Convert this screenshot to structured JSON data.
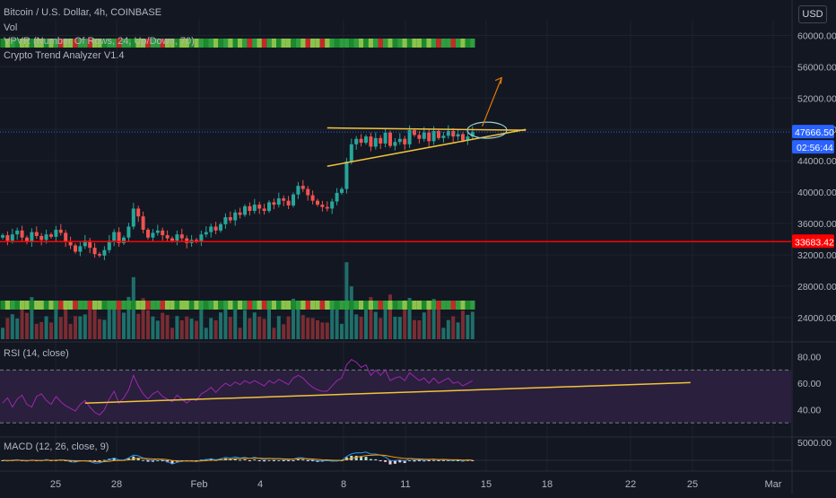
{
  "header": {
    "title": "Bitcoin / U.S. Dollar, 4h, COINBASE",
    "currency": "USD"
  },
  "indicators": {
    "vol": "Vol",
    "vpvr": "VPVR (Number Of Rows, 24, Up/Down, 70)",
    "trend": "Crypto Trend Analyzer V1.4",
    "rsi": "RSI (14, close)",
    "macd": "MACD (12, 26, close, 9)"
  },
  "colors": {
    "background": "#131722",
    "up": "#26a69a",
    "down": "#ef5350",
    "volume_up": "#1f6f6a",
    "volume_down": "#7a2c33",
    "resistance": "#ff0000",
    "trendline": "#f0c33c",
    "rsi_line": "#9c27b0",
    "rsi_band": "#2a1f3d",
    "macd_line": "#2196f3",
    "signal_line": "#ff9800",
    "vp_up": "#2a6fb0",
    "vp_down": "#c9a227",
    "price_label": "#2962ff"
  },
  "chart_data": {
    "type": "candlestick",
    "x_tick_labels": [
      "25",
      "28",
      "Feb",
      "4",
      "8",
      "11",
      "15",
      "18",
      "22",
      "25",
      "Mar"
    ],
    "price_axis": {
      "ticks": [
        "60000.00",
        "56000.00",
        "52000.00",
        "48000.00",
        "44000.00",
        "40000.00",
        "36000.00",
        "32000.00",
        "28000.00",
        "24000.00"
      ],
      "range": [
        21000,
        62000
      ]
    },
    "current_price": "47666.50",
    "countdown": "02:56:44",
    "support_level": "33683.42",
    "rsi_axis": {
      "ticks": [
        "80.00",
        "60.00",
        "40.00"
      ],
      "range": [
        20,
        90
      ],
      "upper_band": 70,
      "lower_band": 30
    },
    "macd_axis": {
      "ticks": [
        "5000.00"
      ],
      "range": [
        -3000,
        6000
      ]
    },
    "candles_close": [
      34500,
      33800,
      34600,
      35100,
      34200,
      33600,
      34900,
      34400,
      33900,
      34600,
      34300,
      35200,
      34800,
      33700,
      33200,
      32400,
      33100,
      33800,
      32900,
      32100,
      31900,
      32600,
      33800,
      34900,
      33500,
      34200,
      35600,
      37900,
      36900,
      35200,
      34200,
      34800,
      35100,
      34500,
      34100,
      33800,
      34600,
      34100,
      33500,
      33900,
      33700,
      34600,
      34900,
      35600,
      35100,
      35900,
      36800,
      36400,
      37400,
      37100,
      38200,
      37600,
      38400,
      37900,
      37600,
      38700,
      38400,
      39200,
      38900,
      38300,
      39700,
      40800,
      40400,
      39600,
      38900,
      38400,
      38100,
      37900,
      38800,
      39900,
      40400,
      43900,
      46100,
      46800,
      46300,
      47100,
      45800,
      46900,
      46200,
      47600,
      45900,
      46400,
      46800,
      46100,
      47900,
      47300,
      46800,
      47600,
      46500,
      47800,
      46900,
      47200,
      47800,
      47100,
      47400,
      46600,
      47100,
      47666
    ],
    "rsi_values": [
      45,
      49,
      42,
      48,
      51,
      44,
      42,
      50,
      52,
      47,
      44,
      50,
      46,
      43,
      41,
      39,
      44,
      47,
      42,
      38,
      36,
      40,
      48,
      54,
      45,
      49,
      55,
      66,
      58,
      52,
      48,
      52,
      54,
      50,
      48,
      46,
      51,
      48,
      45,
      48,
      47,
      52,
      54,
      57,
      53,
      57,
      60,
      58,
      61,
      59,
      62,
      60,
      62,
      60,
      58,
      62,
      60,
      63,
      61,
      59,
      64,
      66,
      64,
      60,
      57,
      55,
      54,
      54,
      58,
      62,
      64,
      74,
      78,
      76,
      72,
      74,
      66,
      70,
      66,
      70,
      62,
      64,
      65,
      62,
      68,
      65,
      62,
      64,
      60,
      64,
      60,
      62,
      64,
      60,
      61,
      58,
      60,
      62
    ],
    "trendline_rsi": {
      "from": [
        17,
        45
      ],
      "to": [
        105,
        60
      ]
    },
    "triangle_resistance": {
      "from": [
        67,
        48200
      ],
      "to": [
        108,
        47900
      ]
    },
    "triangle_support": {
      "from": [
        67,
        43300
      ],
      "to": [
        108,
        48000
      ]
    },
    "target_arrow": {
      "from": [
        99,
        48400
      ],
      "to": [
        103,
        54600
      ]
    },
    "volume_profile": {
      "price_levels": [
        48100,
        47500,
        46900,
        46300,
        45700,
        45100,
        44500,
        43900,
        43300,
        42700,
        42100,
        41500,
        40900,
        40300,
        39700,
        39100,
        38500,
        37900,
        37300,
        36700,
        36100,
        35500,
        34900,
        34300,
        33700,
        33100,
        32500,
        31900,
        31300,
        30700,
        30100
      ],
      "up": [
        6,
        22,
        30,
        20,
        14,
        10,
        6,
        4,
        4,
        3,
        3,
        2,
        3,
        6,
        12,
        22,
        28,
        36,
        40,
        38,
        30,
        34,
        40,
        46,
        60,
        54,
        42,
        30,
        18,
        12,
        8
      ],
      "down": [
        18,
        40,
        30,
        18,
        8,
        6,
        4,
        2,
        2,
        2,
        2,
        2,
        2,
        4,
        8,
        16,
        30,
        46,
        54,
        48,
        36,
        40,
        50,
        62,
        80,
        72,
        58,
        40,
        22,
        10,
        6
      ]
    }
  }
}
